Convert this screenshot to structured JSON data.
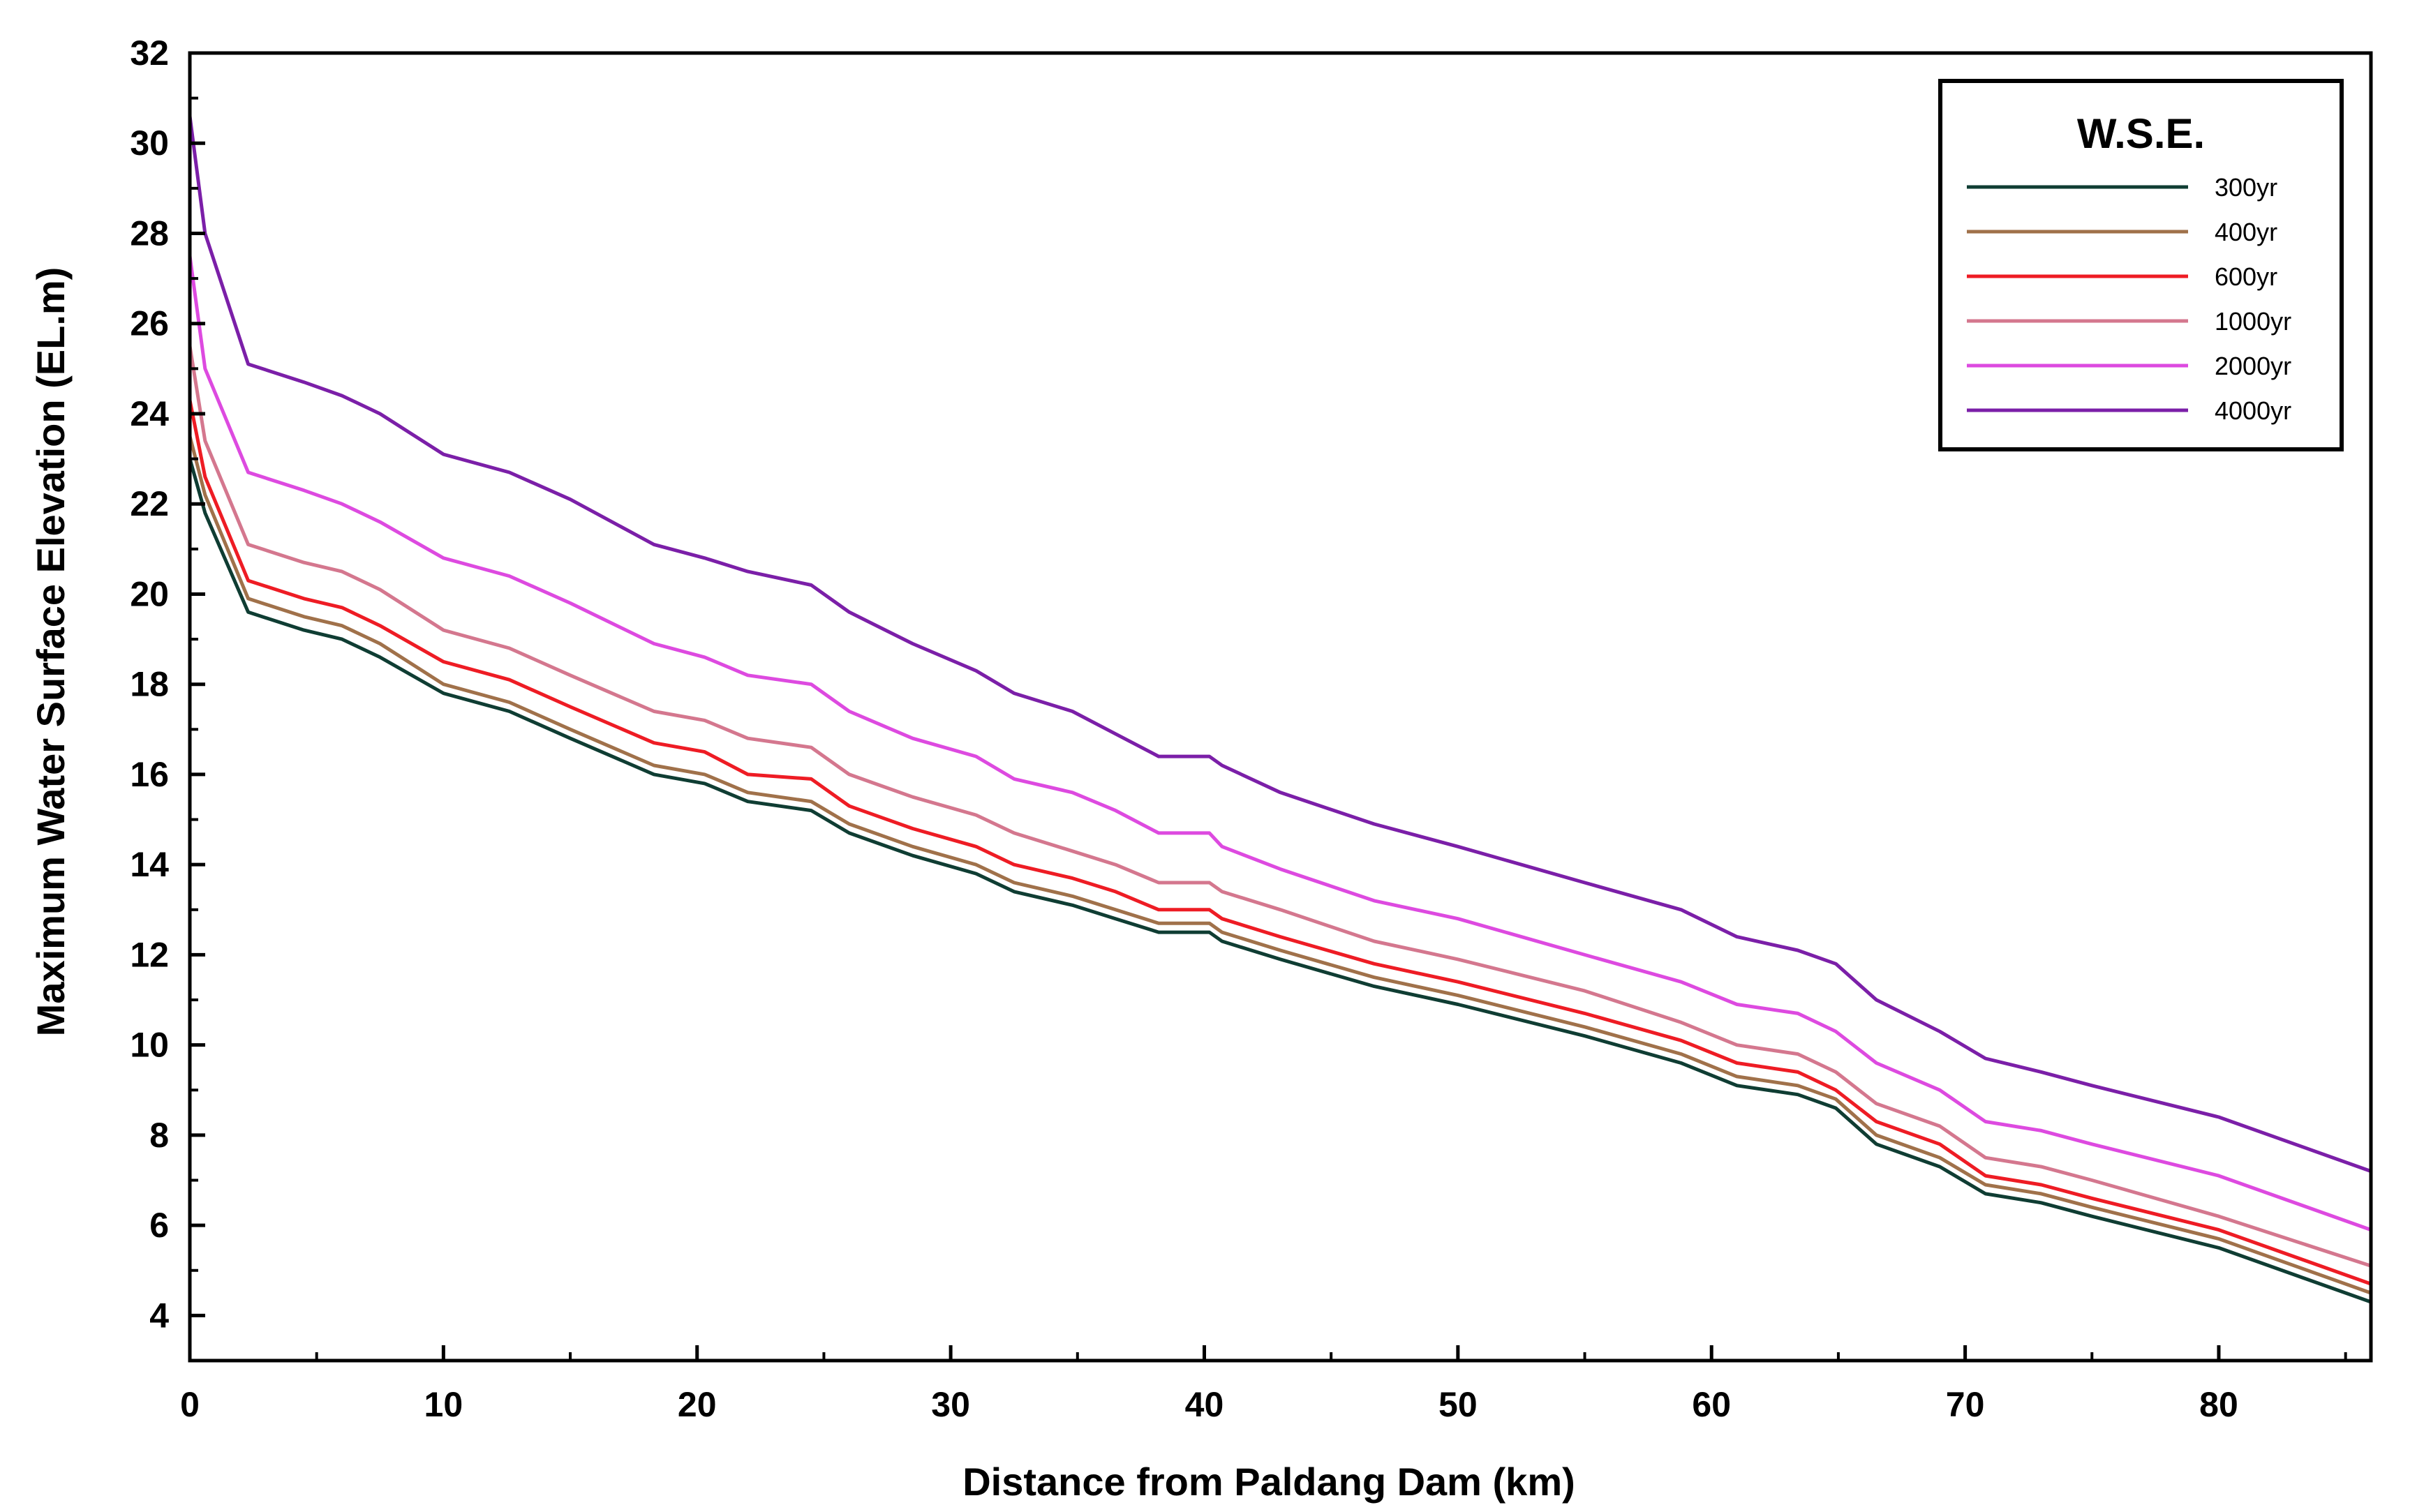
{
  "chart_data": {
    "type": "line",
    "title": "",
    "xlabel": "Distance from Paldang Dam (km)",
    "ylabel": "Maximum Water Surface Elevation (EL.m)",
    "xlim": [
      0,
      86
    ],
    "ylim": [
      3,
      32
    ],
    "x_ticks": [
      0,
      10,
      20,
      30,
      40,
      50,
      60,
      70,
      80
    ],
    "y_ticks": [
      4,
      6,
      8,
      10,
      12,
      14,
      16,
      18,
      20,
      22,
      24,
      26,
      28,
      30,
      32
    ],
    "legend": {
      "title": "W.S.E.",
      "position": "top-right"
    },
    "x": [
      0,
      0.6,
      2.3,
      4.5,
      6.0,
      7.5,
      10.0,
      12.6,
      15.0,
      18.3,
      20.3,
      22.0,
      24.5,
      26.0,
      28.5,
      31.0,
      32.5,
      34.8,
      36.5,
      38.2,
      40.2,
      40.7,
      43.0,
      46.7,
      50.0,
      55.0,
      58.8,
      61.0,
      63.4,
      64.9,
      66.5,
      69.0,
      70.8,
      73.0,
      75.0,
      80.0,
      86.0
    ],
    "series": [
      {
        "name": "300yr",
        "color": "#0f3d33",
        "values": [
          23.0,
          21.8,
          19.6,
          19.2,
          19.0,
          18.6,
          17.8,
          17.4,
          16.8,
          16.0,
          15.8,
          15.4,
          15.2,
          14.7,
          14.2,
          13.8,
          13.4,
          13.1,
          12.8,
          12.5,
          12.5,
          12.3,
          11.9,
          11.3,
          10.9,
          10.2,
          9.6,
          9.1,
          8.9,
          8.6,
          7.8,
          7.3,
          6.7,
          6.5,
          6.2,
          5.5,
          4.3
        ]
      },
      {
        "name": "400yr",
        "color": "#a0714a",
        "values": [
          23.5,
          22.2,
          19.9,
          19.5,
          19.3,
          18.9,
          18.0,
          17.6,
          17.0,
          16.2,
          16.0,
          15.6,
          15.4,
          14.9,
          14.4,
          14.0,
          13.6,
          13.3,
          13.0,
          12.7,
          12.7,
          12.5,
          12.1,
          11.5,
          11.1,
          10.4,
          9.8,
          9.3,
          9.1,
          8.8,
          8.0,
          7.5,
          6.9,
          6.7,
          6.4,
          5.7,
          4.5
        ]
      },
      {
        "name": "600yr",
        "color": "#ee1c24",
        "values": [
          24.3,
          22.6,
          20.3,
          19.9,
          19.7,
          19.3,
          18.5,
          18.1,
          17.5,
          16.7,
          16.5,
          16.0,
          15.9,
          15.3,
          14.8,
          14.4,
          14.0,
          13.7,
          13.4,
          13.0,
          13.0,
          12.8,
          12.4,
          11.8,
          11.4,
          10.7,
          10.1,
          9.6,
          9.4,
          9.0,
          8.3,
          7.8,
          7.1,
          6.9,
          6.6,
          5.9,
          4.7
        ]
      },
      {
        "name": "1000yr",
        "color": "#d4778e",
        "values": [
          25.5,
          23.4,
          21.1,
          20.7,
          20.5,
          20.1,
          19.2,
          18.8,
          18.2,
          17.4,
          17.2,
          16.8,
          16.6,
          16.0,
          15.5,
          15.1,
          14.7,
          14.3,
          14.0,
          13.6,
          13.6,
          13.4,
          13.0,
          12.3,
          11.9,
          11.2,
          10.5,
          10.0,
          9.8,
          9.4,
          8.7,
          8.2,
          7.5,
          7.3,
          7.0,
          6.2,
          5.1
        ]
      },
      {
        "name": "2000yr",
        "color": "#dd4ae0",
        "values": [
          27.5,
          25.0,
          22.7,
          22.3,
          22.0,
          21.6,
          20.8,
          20.4,
          19.8,
          18.9,
          18.6,
          18.2,
          18.0,
          17.4,
          16.8,
          16.4,
          15.9,
          15.6,
          15.2,
          14.7,
          14.7,
          14.4,
          13.9,
          13.2,
          12.8,
          12.0,
          11.4,
          10.9,
          10.7,
          10.3,
          9.6,
          9.0,
          8.3,
          8.1,
          7.8,
          7.1,
          5.9
        ]
      },
      {
        "name": "4000yr",
        "color": "#7b1fa8",
        "values": [
          30.6,
          28.0,
          25.1,
          24.7,
          24.4,
          24.0,
          23.1,
          22.7,
          22.1,
          21.1,
          20.8,
          20.5,
          20.2,
          19.6,
          18.9,
          18.3,
          17.8,
          17.4,
          16.9,
          16.4,
          16.4,
          16.2,
          15.6,
          14.9,
          14.4,
          13.6,
          13.0,
          12.4,
          12.1,
          11.8,
          11.0,
          10.3,
          9.7,
          9.4,
          9.1,
          8.4,
          7.2
        ]
      }
    ]
  }
}
